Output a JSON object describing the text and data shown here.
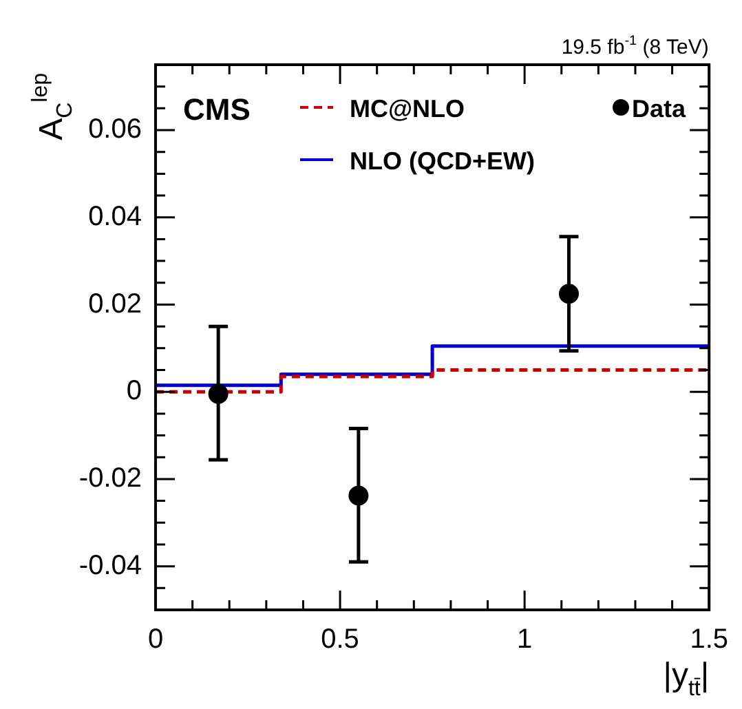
{
  "chart_data": {
    "type": "step",
    "xlabel": "|y$_{tt̄}$|",
    "ylabel": "A$_{C}$$^{lep}$",
    "annotations": [
      "19.5 fb$^{-1}$ (8 TeV)",
      "CMS"
    ],
    "xlim": [
      0,
      1.5
    ],
    "ylim": [
      -0.05,
      0.075
    ],
    "xticks": [
      0,
      {
        "value": 0.1,
        "label": null
      },
      {
        "value": 0.2,
        "label": null
      },
      {
        "value": 0.3,
        "label": null
      },
      {
        "value": 0.4,
        "label": null
      },
      0.5,
      {
        "value": 0.6,
        "label": null
      },
      {
        "value": 0.7,
        "label": null
      },
      {
        "value": 0.8,
        "label": null
      },
      {
        "value": 0.9,
        "label": null
      },
      1,
      {
        "value": 1.1,
        "label": null
      },
      {
        "value": 1.2,
        "label": null
      },
      {
        "value": 1.3,
        "label": null
      },
      {
        "value": 1.4,
        "label": null
      },
      1.5
    ],
    "yticks": [
      {
        "value": -0.045,
        "label": null
      },
      -0.04,
      {
        "value": -0.035,
        "label": null
      },
      {
        "value": -0.03,
        "label": null
      },
      {
        "value": -0.025,
        "label": null
      },
      -0.02,
      {
        "value": -0.015,
        "label": null
      },
      {
        "value": -0.01,
        "label": null
      },
      {
        "value": -0.005,
        "label": null
      },
      0,
      {
        "value": 0.005,
        "label": null
      },
      {
        "value": 0.01,
        "label": null
      },
      {
        "value": 0.015,
        "label": null
      },
      0.02,
      {
        "value": 0.025,
        "label": null
      },
      {
        "value": 0.03,
        "label": null
      },
      {
        "value": 0.035,
        "label": null
      },
      0.04,
      {
        "value": 0.045,
        "label": null
      },
      {
        "value": 0.05,
        "label": null
      },
      {
        "value": 0.055,
        "label": null
      },
      0.06,
      {
        "value": 0.065,
        "label": null
      },
      {
        "value": 0.07,
        "label": null
      }
    ],
    "legend": "top",
    "grid": false,
    "series": [
      {
        "name": "MC@NLO",
        "color": "#cc0000",
        "line_style": "dashed",
        "x": [
          0,
          0.34,
          0.75,
          1.5
        ],
        "values": [
          0,
          0.0035,
          0.005,
          0.005
        ]
      },
      {
        "name": "NLO (QCD+EW)",
        "color": "#0000cc",
        "line_style": "solid",
        "x": [
          0,
          0.34,
          0.75,
          1.5
        ],
        "values": [
          0.0015,
          0.004,
          0.0105,
          0.0105
        ]
      },
      {
        "name": "Data",
        "type": "scatter",
        "color": "#000000",
        "marker": "circle",
        "x": [
          0.17,
          0.55,
          1.12
        ],
        "values": [
          -0.0005,
          -0.0238,
          0.0225
        ],
        "errors": [
          [
            -0.0156,
            0.015
          ],
          [
            -0.039,
            -0.0084
          ],
          [
            0.0094,
            0.0356
          ]
        ]
      }
    ]
  }
}
